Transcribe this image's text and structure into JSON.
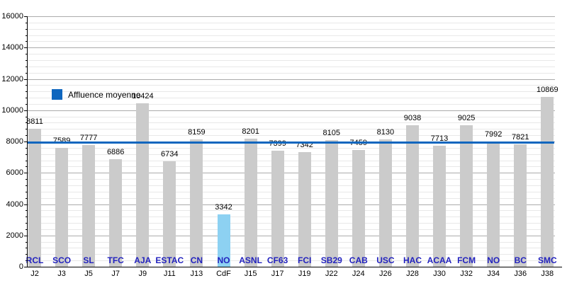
{
  "chart_data": {
    "type": "bar",
    "title": "",
    "legend_label": "Affluence moyenne",
    "legend_position": "upper-left-inside",
    "grid": "on",
    "ylim": [
      0,
      16000
    ],
    "y_major_step": 2000,
    "y_minor_step": 400,
    "y_tick_labels": [
      "0",
      "2000",
      "4000",
      "6000",
      "8000",
      "10000",
      "12000",
      "14000",
      "16000"
    ],
    "average_line_value": 7941,
    "bars": [
      {
        "team": "RCL",
        "day": "J2",
        "value": 8811,
        "highlight": false
      },
      {
        "team": "SCO",
        "day": "J3",
        "value": 7589,
        "highlight": false
      },
      {
        "team": "SL",
        "day": "J5",
        "value": 7777,
        "highlight": false
      },
      {
        "team": "TFC",
        "day": "J7",
        "value": 6886,
        "highlight": false
      },
      {
        "team": "AJA",
        "day": "J9",
        "value": 10424,
        "highlight": false
      },
      {
        "team": "ESTAC",
        "day": "J11",
        "value": 6734,
        "highlight": false
      },
      {
        "team": "CN",
        "day": "J13",
        "value": 8159,
        "highlight": false
      },
      {
        "team": "NO",
        "day": "CdF",
        "value": 3342,
        "highlight": true
      },
      {
        "team": "ASNL",
        "day": "J15",
        "value": 8201,
        "highlight": false
      },
      {
        "team": "CF63",
        "day": "J17",
        "value": 7399,
        "highlight": false
      },
      {
        "team": "FCI",
        "day": "J19",
        "value": 7342,
        "highlight": false
      },
      {
        "team": "SB29",
        "day": "J22",
        "value": 8105,
        "highlight": false
      },
      {
        "team": "CAB",
        "day": "J24",
        "value": 7459,
        "highlight": false
      },
      {
        "team": "USC",
        "day": "J26",
        "value": 8130,
        "highlight": false
      },
      {
        "team": "HAC",
        "day": "J28",
        "value": 9038,
        "highlight": false
      },
      {
        "team": "ACAA",
        "day": "J30",
        "value": 7713,
        "highlight": false
      },
      {
        "team": "FCM",
        "day": "J32",
        "value": 9025,
        "highlight": false
      },
      {
        "team": "NO",
        "day": "J34",
        "value": 7992,
        "highlight": false
      },
      {
        "team": "BC",
        "day": "J36",
        "value": 7821,
        "highlight": false
      },
      {
        "team": "SMC",
        "day": "J38",
        "value": 10869,
        "highlight": false
      }
    ],
    "colors": {
      "bar": "#CBCBCB",
      "highlight_bar": "#8DD1F2",
      "average_line": "#0E66BE",
      "legend_swatch": "#0E66BE",
      "team_label": "#2222BE",
      "axis": "#000000",
      "grid_major": "#ABABAB",
      "grid_minor": "#E8E8E8"
    }
  }
}
